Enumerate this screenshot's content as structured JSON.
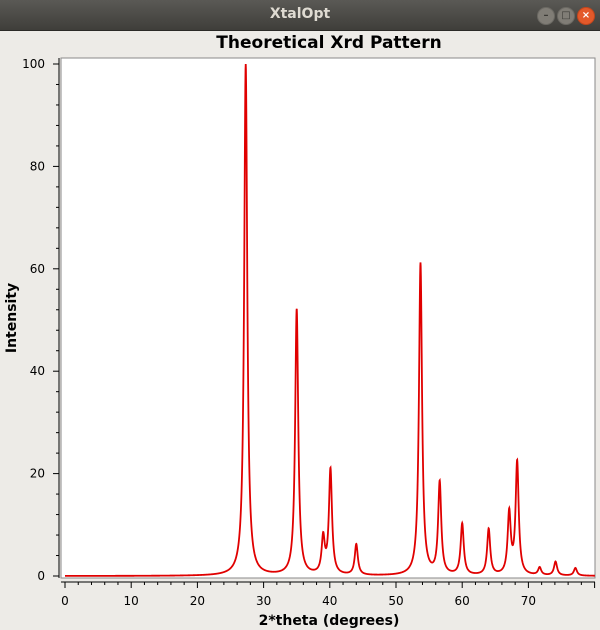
{
  "window": {
    "title": "XtalOpt"
  },
  "icons": {
    "minimize": "minimize-icon",
    "maximize": "maximize-icon",
    "close": "close-icon"
  },
  "chart_data": {
    "type": "line",
    "title": "Theoretical Xrd Pattern",
    "xlabel": "2*theta (degrees)",
    "ylabel": "Intensity",
    "xlim": [
      0,
      80
    ],
    "ylim": [
      0,
      100
    ],
    "xticks": [
      0,
      10,
      20,
      30,
      40,
      50,
      60,
      70
    ],
    "yticks": [
      0,
      20,
      40,
      60,
      80,
      100
    ],
    "grid": false,
    "line_color": "#e00000",
    "series": [
      {
        "peaks": [
          {
            "x": 27.3,
            "y": 100
          },
          {
            "x": 35.0,
            "y": 52
          },
          {
            "x": 39.0,
            "y": 7
          },
          {
            "x": 40.1,
            "y": 20.5
          },
          {
            "x": 44.0,
            "y": 6
          },
          {
            "x": 53.7,
            "y": 61
          },
          {
            "x": 56.6,
            "y": 18
          },
          {
            "x": 60.0,
            "y": 10
          },
          {
            "x": 64.0,
            "y": 9
          },
          {
            "x": 67.1,
            "y": 12
          },
          {
            "x": 68.3,
            "y": 22
          },
          {
            "x": 71.7,
            "y": 1.5
          },
          {
            "x": 74.1,
            "y": 2.7
          },
          {
            "x": 77.1,
            "y": 1.5
          }
        ]
      }
    ]
  }
}
